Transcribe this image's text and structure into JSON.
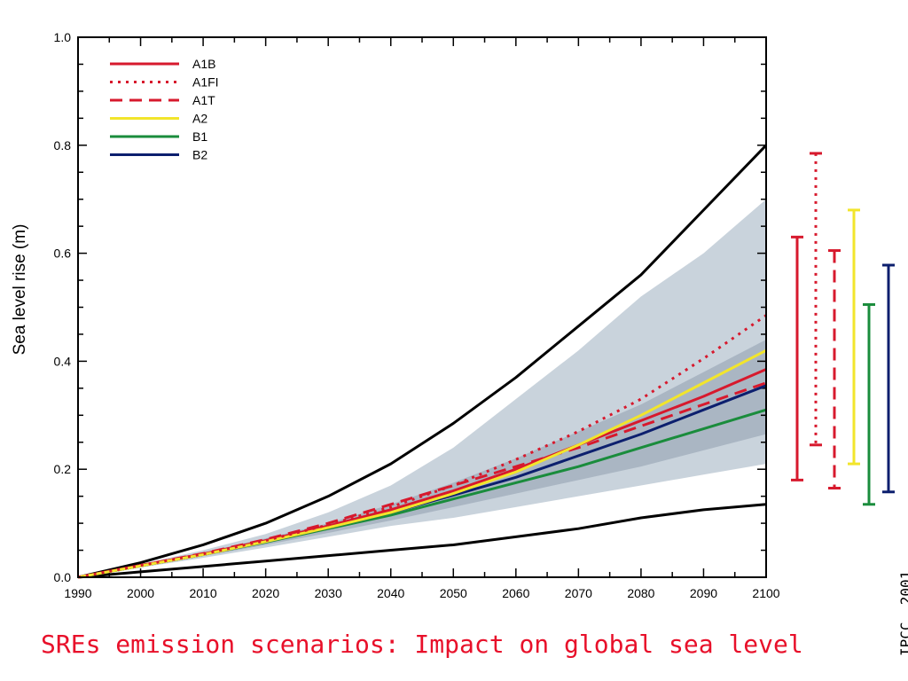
{
  "caption": "SREs emission scenarios: Impact on global sea level",
  "credit": "IPCC, 2001",
  "colors": {
    "A1B": "#d7192d",
    "A1FI": "#d7192d",
    "A1T": "#d7192d",
    "A2": "#f2e52b",
    "B1": "#1a8c3c",
    "B2": "#0c1f6e",
    "envelope": "#000000",
    "band_outer": "#c9d3dc",
    "band_inner": "#aab6c3"
  },
  "chart_data": {
    "type": "line",
    "title": "",
    "xlabel": "",
    "ylabel": "Sea level rise (m)",
    "xlim": [
      1990,
      2100
    ],
    "ylim": [
      0,
      1.0
    ],
    "xticks": [
      "1990",
      "2000",
      "2010",
      "2020",
      "2030",
      "2040",
      "2050",
      "2060",
      "2070",
      "2080",
      "2090",
      "2100"
    ],
    "yticks": [
      "0.0",
      "0.2",
      "0.4",
      "0.6",
      "0.8",
      "1.0"
    ],
    "legend_position": "top-left",
    "x": [
      1990,
      2000,
      2010,
      2020,
      2030,
      2040,
      2050,
      2060,
      2070,
      2080,
      2090,
      2100
    ],
    "series": [
      {
        "name": "A1B",
        "style": "solid",
        "values": [
          0,
          0.022,
          0.043,
          0.068,
          0.095,
          0.125,
          0.16,
          0.2,
          0.245,
          0.29,
          0.335,
          0.385
        ]
      },
      {
        "name": "A1FI",
        "style": "dotted",
        "values": [
          0,
          0.022,
          0.043,
          0.068,
          0.097,
          0.13,
          0.17,
          0.218,
          0.27,
          0.33,
          0.405,
          0.485
        ]
      },
      {
        "name": "A1T",
        "style": "dashed",
        "values": [
          0,
          0.022,
          0.044,
          0.07,
          0.1,
          0.135,
          0.17,
          0.205,
          0.24,
          0.28,
          0.32,
          0.36
        ]
      },
      {
        "name": "A2",
        "style": "solid",
        "values": [
          0,
          0.021,
          0.042,
          0.066,
          0.092,
          0.12,
          0.155,
          0.195,
          0.245,
          0.3,
          0.36,
          0.42
        ]
      },
      {
        "name": "B1",
        "style": "solid",
        "values": [
          0,
          0.021,
          0.042,
          0.065,
          0.09,
          0.115,
          0.145,
          0.175,
          0.205,
          0.24,
          0.275,
          0.31
        ]
      },
      {
        "name": "B2",
        "style": "solid",
        "values": [
          0,
          0.021,
          0.042,
          0.066,
          0.092,
          0.12,
          0.152,
          0.185,
          0.225,
          0.265,
          0.31,
          0.355
        ]
      }
    ],
    "envelope": {
      "upper": [
        0,
        0.027,
        0.06,
        0.1,
        0.15,
        0.21,
        0.285,
        0.37,
        0.465,
        0.56,
        0.68,
        0.8
      ],
      "lower": [
        0,
        0.01,
        0.02,
        0.03,
        0.04,
        0.05,
        0.06,
        0.075,
        0.09,
        0.11,
        0.125,
        0.135
      ]
    },
    "band_outer": {
      "upper": [
        0,
        0.024,
        0.05,
        0.08,
        0.12,
        0.17,
        0.24,
        0.33,
        0.42,
        0.52,
        0.6,
        0.7
      ],
      "lower": [
        0,
        0.018,
        0.036,
        0.055,
        0.075,
        0.095,
        0.11,
        0.13,
        0.15,
        0.17,
        0.19,
        0.21
      ]
    },
    "band_inner": {
      "upper": [
        0,
        0.023,
        0.046,
        0.072,
        0.1,
        0.135,
        0.175,
        0.22,
        0.27,
        0.32,
        0.38,
        0.44
      ],
      "lower": [
        0,
        0.02,
        0.039,
        0.06,
        0.082,
        0.105,
        0.13,
        0.155,
        0.18,
        0.205,
        0.235,
        0.265
      ]
    },
    "range_bars": [
      {
        "name": "A1B",
        "style": "solid",
        "low": 0.18,
        "high": 0.63
      },
      {
        "name": "A1FI",
        "style": "dotted",
        "low": 0.245,
        "high": 0.785
      },
      {
        "name": "A1T",
        "style": "dashed",
        "low": 0.165,
        "high": 0.605
      },
      {
        "name": "A2",
        "style": "solid",
        "low": 0.21,
        "high": 0.68
      },
      {
        "name": "B1",
        "style": "solid",
        "low": 0.135,
        "high": 0.505
      },
      {
        "name": "B2",
        "style": "solid",
        "low": 0.158,
        "high": 0.578
      }
    ]
  }
}
